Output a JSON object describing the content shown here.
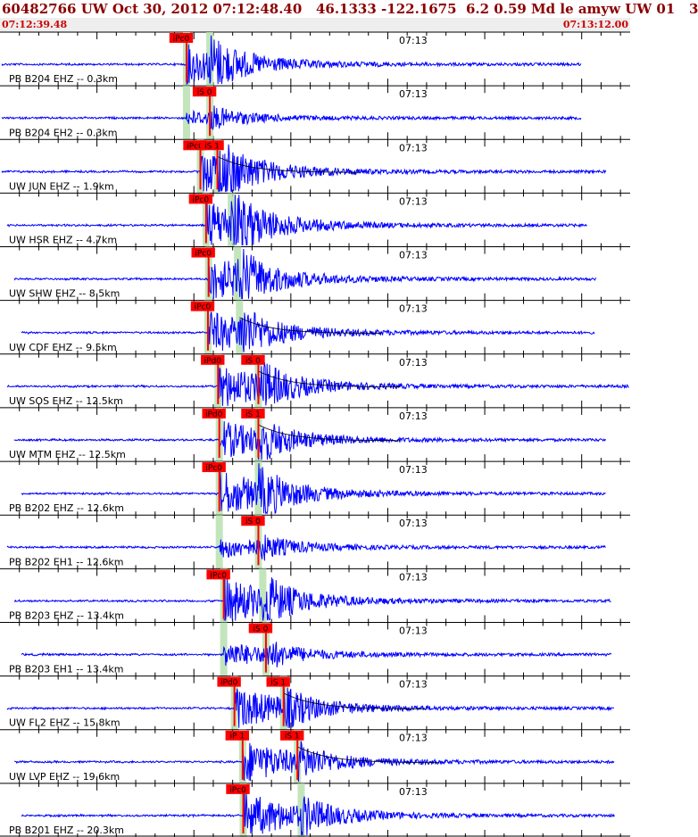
{
  "header": {
    "title": "60482766 UW Oct 30, 2012 07:12:48.40   46.1333 -122.1675  6.2 0.59 Md le amyw UW 01   3",
    "start_time": "07:12:39.48",
    "end_time": "07:13:12.00"
  },
  "colors": {
    "trace": "#0000ff",
    "pick": "#ff0000",
    "window": "#b8e0b0",
    "grid": "#000000",
    "title": "#8b0000"
  },
  "chart_data": {
    "type": "line",
    "time_label": "07:13",
    "traces": [
      {
        "label": "PB B204 EHZ -- 0.3km",
        "picks": [
          "iPc0"
        ],
        "p_time": 0.296,
        "s_time": 0.333,
        "trace_end": 0.922,
        "amplitude": 22,
        "coda": false
      },
      {
        "label": "PB B204 EH2 -- 0.3km",
        "picks": [
          "iS 0"
        ],
        "p_time": 0.296,
        "s_time": 0.333,
        "trace_end": 0.922,
        "amplitude": 8,
        "coda": false
      },
      {
        "label": "UW JUN EHZ -- 1.9km",
        "picks": [
          "iPc0",
          "iS 1"
        ],
        "p_time": 0.318,
        "s_time": 0.345,
        "trace_end": 0.962,
        "amplitude": 24,
        "coda": true
      },
      {
        "label": "UW HSR EHZ -- 4.7km",
        "picks": [
          "iPc0"
        ],
        "p_time": 0.327,
        "s_time": 0.367,
        "trace_end": 0.932,
        "amplitude": 28,
        "coda": false
      },
      {
        "label": "UW SHW EHZ -- 8.5km",
        "picks": [
          "iPc0"
        ],
        "p_time": 0.331,
        "s_time": 0.377,
        "trace_end": 0.946,
        "amplitude": 26,
        "coda": false
      },
      {
        "label": "UW CDF EHZ -- 9.5km",
        "picks": [
          "iPc0"
        ],
        "p_time": 0.33,
        "s_time": 0.38,
        "trace_end": 0.944,
        "amplitude": 24,
        "coda": true
      },
      {
        "label": "UW SOS EHZ -- 12.5km",
        "picks": [
          "iPd0",
          "iS 0"
        ],
        "p_time": 0.346,
        "s_time": 0.41,
        "trace_end": 0.998,
        "amplitude": 26,
        "coda": true
      },
      {
        "label": "UW MTM EHZ -- 12.5km",
        "picks": [
          "iPd0",
          "iS 1"
        ],
        "p_time": 0.348,
        "s_time": 0.41,
        "trace_end": 0.962,
        "amplitude": 22,
        "coda": true
      },
      {
        "label": "PB B202 EHZ -- 12.6km",
        "picks": [
          "iPc0"
        ],
        "p_time": 0.348,
        "s_time": 0.41,
        "trace_end": 0.962,
        "amplitude": 26,
        "coda": false
      },
      {
        "label": "PB B202 EH1 -- 12.6km",
        "picks": [
          "iS 0"
        ],
        "p_time": 0.348,
        "s_time": 0.41,
        "trace_end": 0.962,
        "amplitude": 12,
        "coda": false
      },
      {
        "label": "PB B203 EHZ -- 13.4km",
        "picks": [
          "iPc0"
        ],
        "p_time": 0.355,
        "s_time": 0.417,
        "trace_end": 0.97,
        "amplitude": 26,
        "coda": false
      },
      {
        "label": "PB B203 EH1 -- 13.4km",
        "picks": [
          "iS 0"
        ],
        "p_time": 0.355,
        "s_time": 0.422,
        "trace_end": 0.97,
        "amplitude": 14,
        "coda": false
      },
      {
        "label": "UW FL2 EHZ -- 15.8km",
        "picks": [
          "iPd0",
          "iS 1"
        ],
        "p_time": 0.372,
        "s_time": 0.45,
        "trace_end": 0.975,
        "amplitude": 24,
        "coda": true
      },
      {
        "label": "UW LVP EHZ -- 19.6km",
        "picks": [
          "iP 1",
          "iS 1"
        ],
        "p_time": 0.385,
        "s_time": 0.472,
        "trace_end": 0.975,
        "amplitude": 24,
        "coda": true
      },
      {
        "label": "PB B201 EHZ -- 20.3km",
        "picks": [
          "iPc0"
        ],
        "p_time": 0.386,
        "s_time": 0.478,
        "trace_end": 0.975,
        "amplitude": 26,
        "coda": false
      }
    ]
  }
}
